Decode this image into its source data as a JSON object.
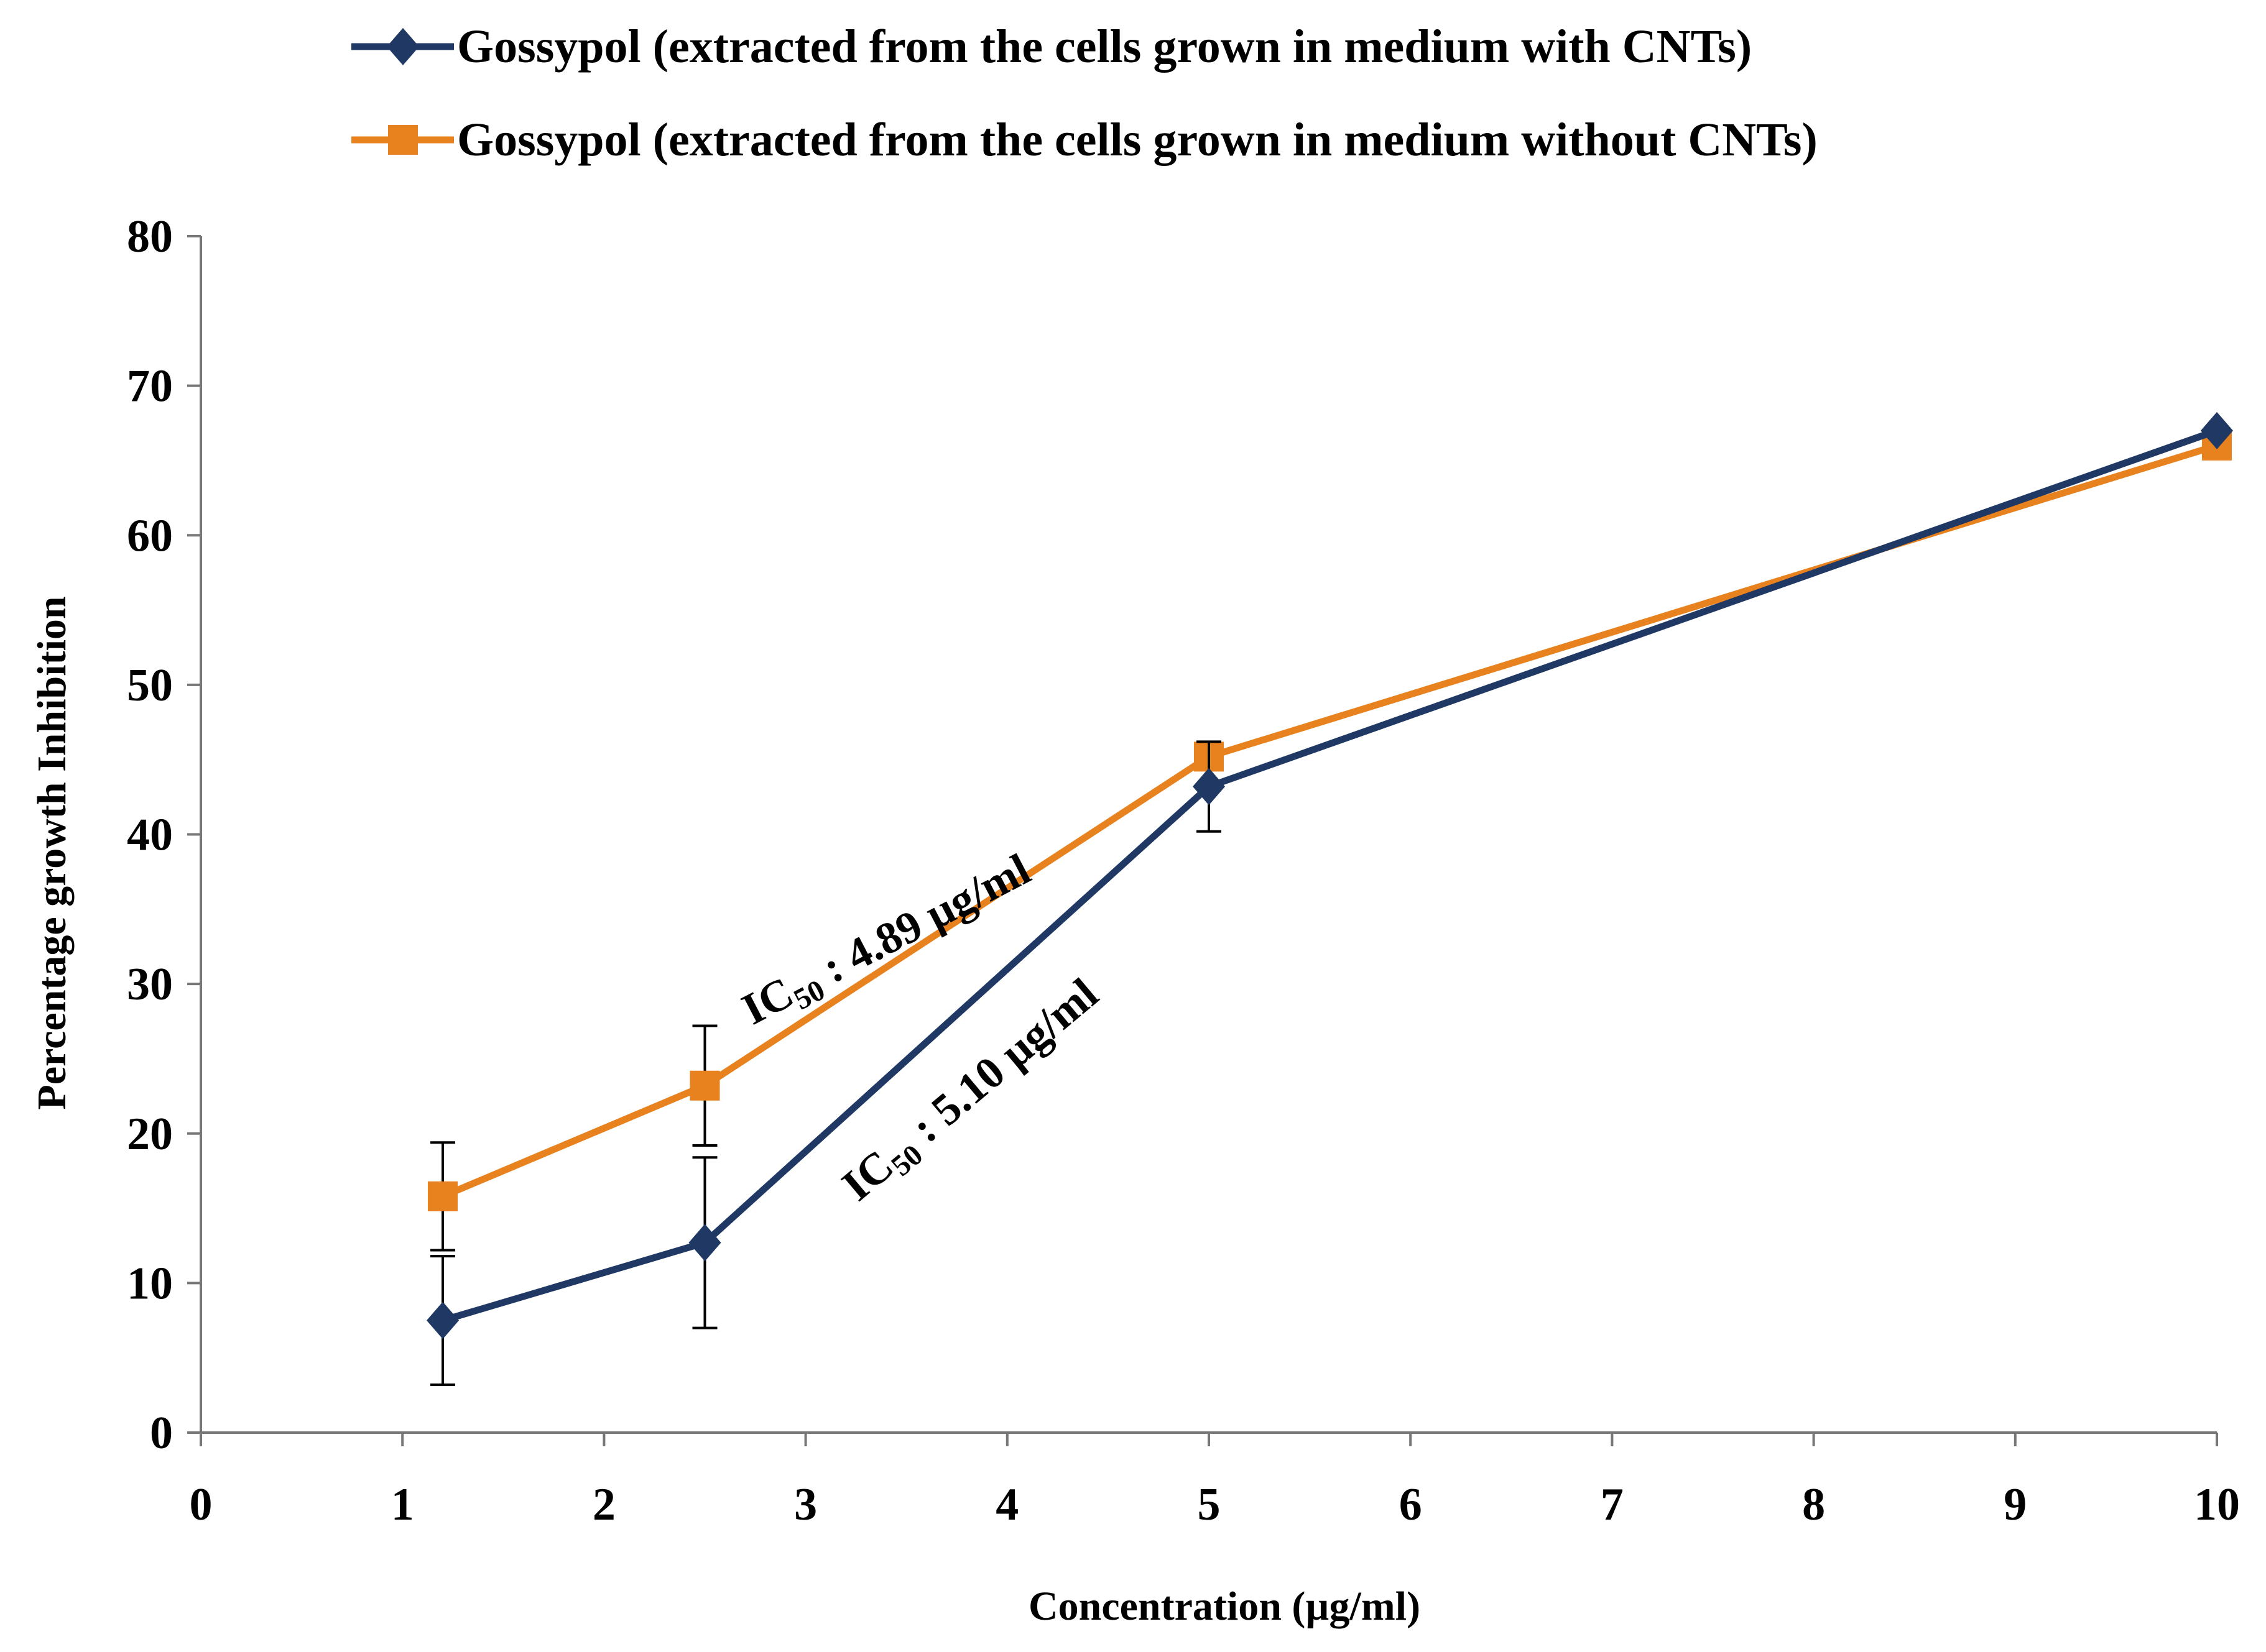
{
  "chart_data": {
    "type": "line",
    "xlabel": "Concentration (µg/ml)",
    "ylabel": "Percentage growth Inhibition",
    "xlim": [
      0,
      10
    ],
    "ylim": [
      0,
      80
    ],
    "xticks": [
      "0",
      "1",
      "2",
      "3",
      "4",
      "5",
      "6",
      "7",
      "8",
      "9",
      "10"
    ],
    "yticks": [
      "0",
      "10",
      "20",
      "30",
      "40",
      "50",
      "60",
      "70",
      "80"
    ],
    "grid": false,
    "legend_position": "top",
    "series": [
      {
        "name": "Gossypol (extracted  from the cells grown in medium with CNTs)",
        "color": "#1f3864",
        "marker": "diamond",
        "x": [
          1.2,
          2.5,
          5,
          10
        ],
        "y": [
          7.5,
          12.7,
          43.2,
          67.0
        ],
        "error": [
          4.3,
          5.7,
          3.0,
          0
        ]
      },
      {
        "name": "Gossypol (extracted  from the cells grown in medium without CNTs)",
        "color": "#e8821e",
        "marker": "square",
        "x": [
          1.2,
          2.5,
          5,
          10
        ],
        "y": [
          15.8,
          23.2,
          45.2,
          66.0
        ],
        "error": [
          3.6,
          4.0,
          0.8,
          0
        ]
      }
    ],
    "annotations": [
      {
        "prefix": "IC",
        "sub": "50",
        "suffix": " : 4.89 µg/ml",
        "color": "#000000"
      },
      {
        "prefix": "IC",
        "sub": "50",
        "suffix": " : 5.10 µg/ml",
        "color": "#000000"
      }
    ]
  }
}
